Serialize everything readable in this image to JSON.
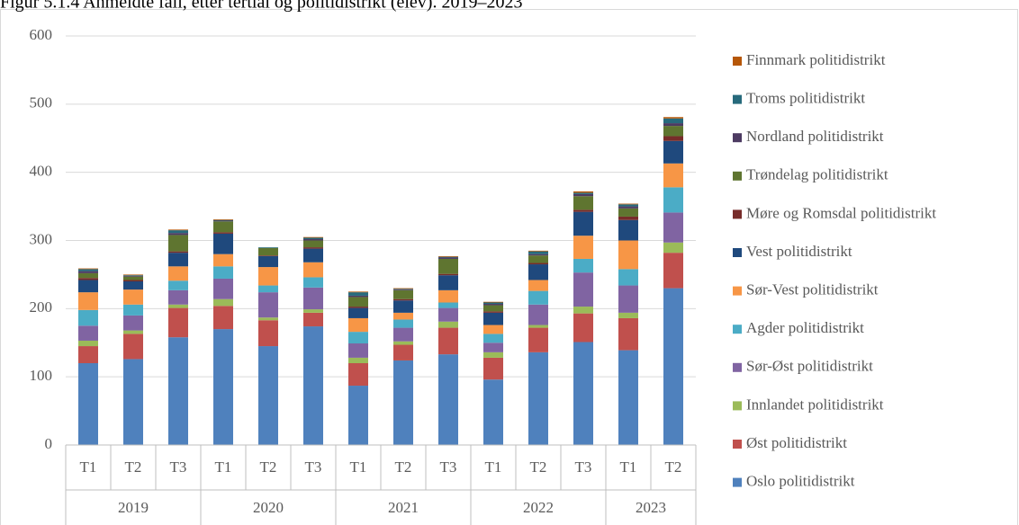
{
  "chart_data": {
    "type": "stacked_bar",
    "title": "Figur 5.1.4 Anmeldte fall, etter tertial og politidistrikt (elev). 2019–2023",
    "groups": [
      {
        "label": "2019",
        "categories": [
          "T1",
          "T2",
          "T3"
        ]
      },
      {
        "label": "2020",
        "categories": [
          "T1",
          "T2",
          "T3"
        ]
      },
      {
        "label": "2021",
        "categories": [
          "T1",
          "T2",
          "T3"
        ]
      },
      {
        "label": "2022",
        "categories": [
          "T1",
          "T2",
          "T3"
        ]
      },
      {
        "label": "2023",
        "categories": [
          "T1",
          "T2"
        ]
      }
    ],
    "ylim": [
      0,
      600
    ],
    "yticks": [
      0,
      100,
      200,
      300,
      400,
      500,
      600
    ],
    "grid": true,
    "legend": "right",
    "series": [
      {
        "name": "Oslo politidistrikt",
        "color": "#4f81bd",
        "values": [
          120,
          126,
          158,
          170,
          145,
          174,
          87,
          124,
          133,
          96,
          136,
          151,
          139,
          230
        ]
      },
      {
        "name": "Øst politidistrikt",
        "color": "#c0504d",
        "values": [
          25,
          37,
          43,
          34,
          38,
          20,
          33,
          23,
          39,
          32,
          36,
          42,
          47,
          52
        ]
      },
      {
        "name": "Innlandet politidistrikt",
        "color": "#9bbb59",
        "values": [
          8,
          5,
          5,
          10,
          4,
          5,
          8,
          5,
          9,
          8,
          4,
          10,
          8,
          15
        ]
      },
      {
        "name": "Sør-Øst politidistrikt",
        "color": "#8064a2",
        "values": [
          22,
          22,
          21,
          30,
          37,
          32,
          21,
          20,
          20,
          14,
          30,
          50,
          40,
          44
        ]
      },
      {
        "name": "Agder politidistrikt",
        "color": "#4bacc6",
        "values": [
          23,
          16,
          14,
          18,
          10,
          15,
          17,
          12,
          8,
          13,
          20,
          20,
          24,
          37
        ]
      },
      {
        "name": "Sør-Vest politidistrikt",
        "color": "#f79646",
        "values": [
          26,
          22,
          21,
          18,
          27,
          22,
          20,
          10,
          18,
          13,
          16,
          34,
          42,
          35
        ]
      },
      {
        "name": "Vest politidistrikt",
        "color": "#1f497d",
        "values": [
          18,
          12,
          20,
          30,
          16,
          20,
          15,
          18,
          22,
          18,
          23,
          35,
          30,
          33
        ]
      },
      {
        "name": "Møre og Romsdal politidistrikt",
        "color": "#772c2a",
        "values": [
          3,
          2,
          2,
          2,
          1,
          2,
          2,
          2,
          2,
          2,
          2,
          3,
          5,
          7
        ]
      },
      {
        "name": "Trøndelag politidistrikt",
        "color": "#5f7530",
        "values": [
          7,
          5,
          24,
          16,
          11,
          10,
          14,
          13,
          22,
          9,
          11,
          20,
          12,
          15
        ]
      },
      {
        "name": "Nordland politidistrikt",
        "color": "#4d3b62",
        "values": [
          3,
          1,
          3,
          1,
          0,
          2,
          2,
          1,
          2,
          2,
          2,
          3,
          3,
          4
        ]
      },
      {
        "name": "Troms politidistrikt",
        "color": "#276a7c",
        "values": [
          3,
          1,
          4,
          1,
          1,
          2,
          5,
          1,
          1,
          2,
          4,
          2,
          3,
          7
        ]
      },
      {
        "name": "Finnmark politidistrikt",
        "color": "#b65708",
        "values": [
          1,
          1,
          1,
          1,
          0,
          1,
          1,
          1,
          1,
          1,
          1,
          2,
          1,
          2
        ]
      }
    ]
  }
}
